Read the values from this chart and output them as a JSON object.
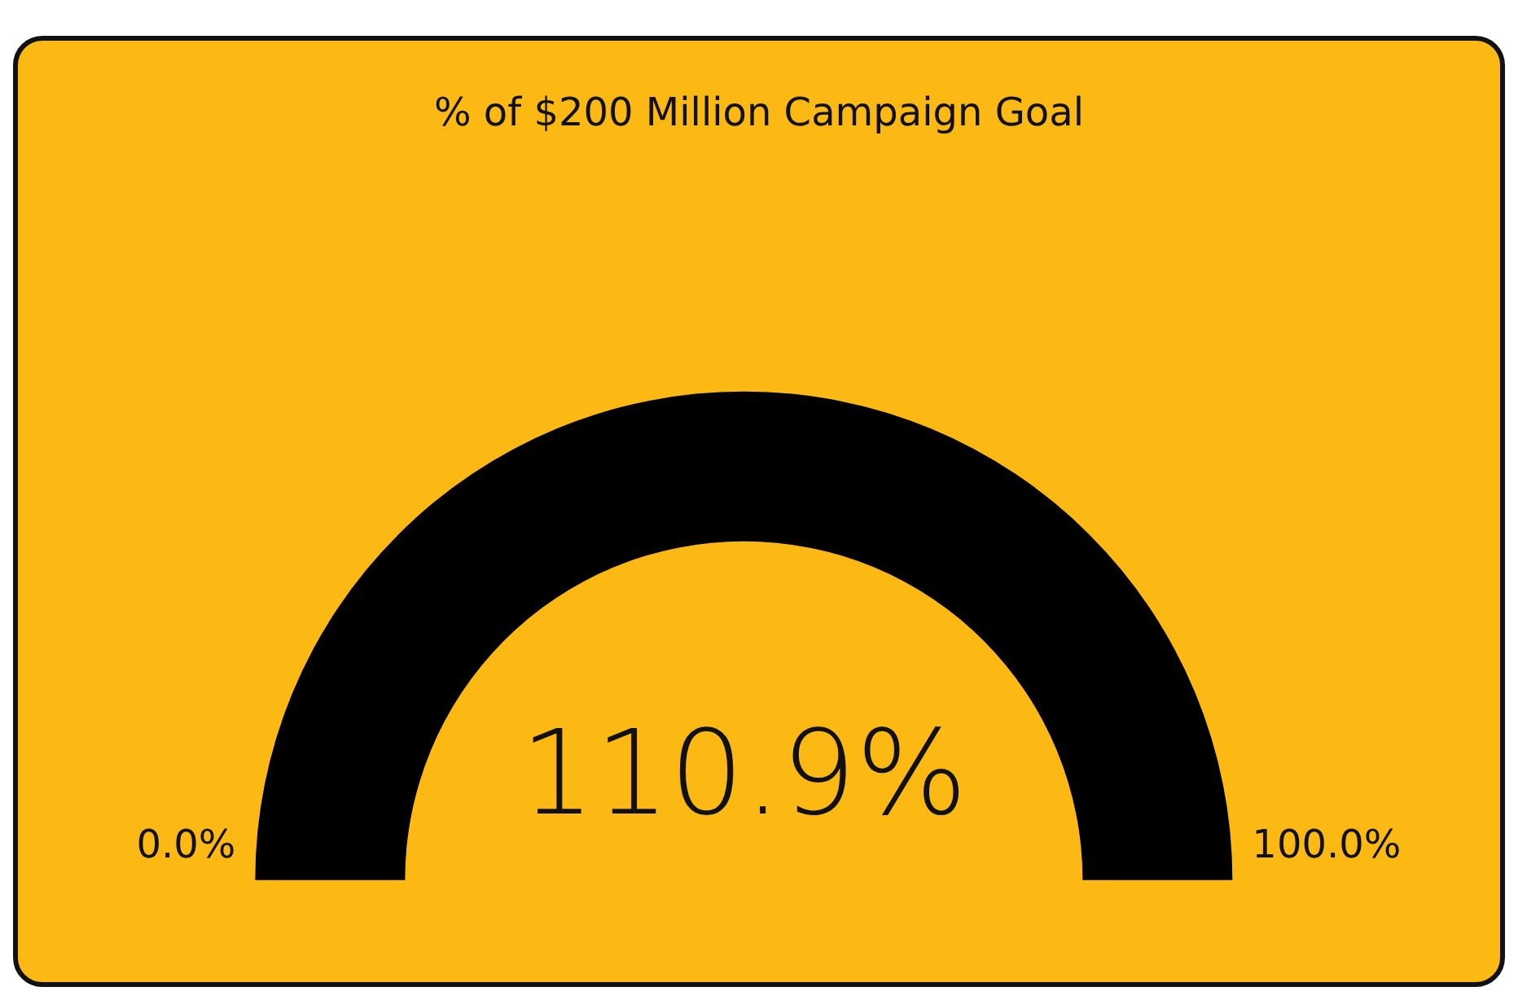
{
  "chart_data": {
    "type": "other",
    "title": "% of $200 Million Campaign Goal",
    "values": [
      110.9
    ],
    "value_labels": [
      "110.9%"
    ],
    "color": "#000000",
    "annotations": [
      "0.0%",
      "100.0%"
    ]
  }
}
